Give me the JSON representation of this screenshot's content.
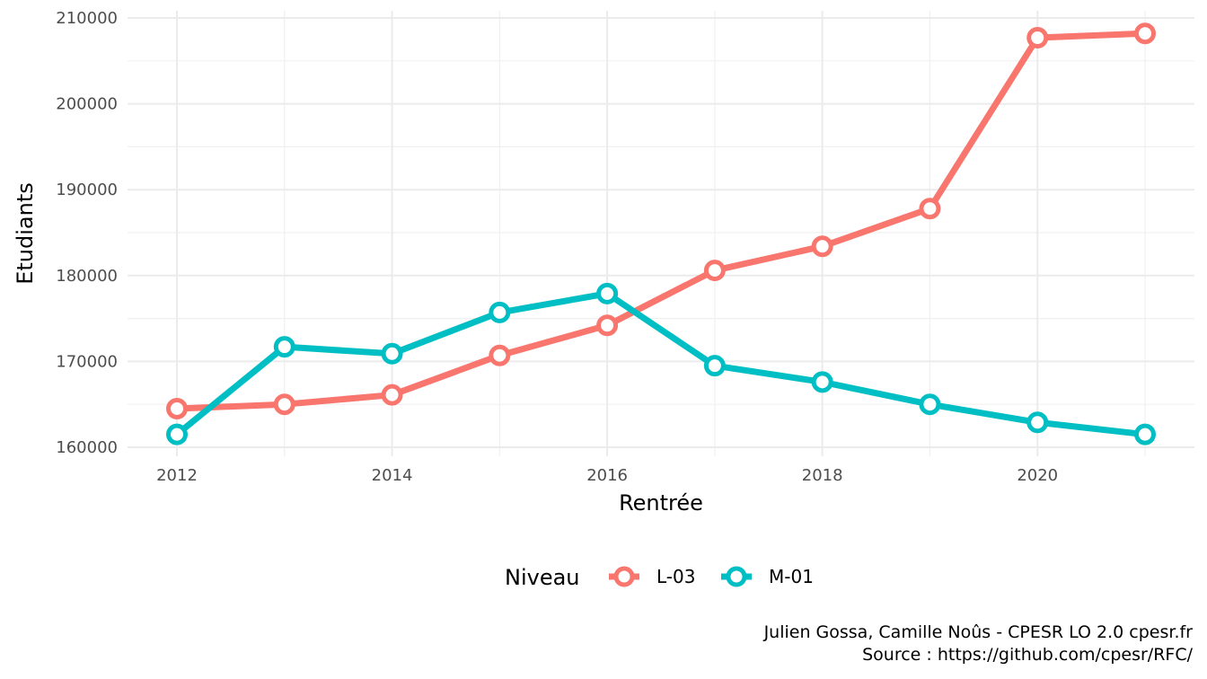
{
  "chart_data": {
    "type": "line",
    "title": "",
    "xlabel": "Rentrée",
    "ylabel": "Etudiants",
    "x": [
      2012,
      2013,
      2014,
      2015,
      2016,
      2017,
      2018,
      2019,
      2020,
      2021
    ],
    "xlim": [
      2011.5,
      2021.5
    ],
    "ylim": [
      160000,
      210000
    ],
    "x_ticks": [
      2012,
      2014,
      2016,
      2018,
      2020
    ],
    "x_tick_labels": [
      "2012",
      "2014",
      "2016",
      "2018",
      "2020"
    ],
    "y_ticks": [
      160000,
      170000,
      180000,
      190000,
      200000,
      210000
    ],
    "y_tick_labels": [
      "160000",
      "170000",
      "180000",
      "190000",
      "200000",
      "210000"
    ],
    "grid": true,
    "legend": {
      "title": "Niveau",
      "position": "bottom"
    },
    "series": [
      {
        "name": "L-03",
        "color": "#F8766D",
        "values": [
          164500,
          165000,
          166100,
          170700,
          174200,
          180600,
          183400,
          187800,
          207700,
          208200
        ]
      },
      {
        "name": "M-01",
        "color": "#00BFC4",
        "values": [
          161500,
          171700,
          170900,
          175700,
          177900,
          169500,
          167600,
          165000,
          162900,
          161500
        ]
      }
    ]
  },
  "caption": {
    "line1": "Julien Gossa, Camille Noûs - CPESR LO 2.0 cpesr.fr",
    "line2": "Source : https://github.com/cpesr/RFC/"
  }
}
